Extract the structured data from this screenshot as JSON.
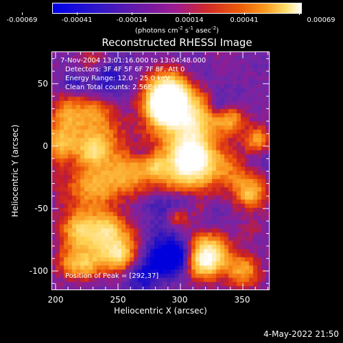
{
  "colorbar": {
    "tick_labels": [
      "-0.00069",
      "-0.00041",
      "-0.00014",
      "0.00014",
      "0.00041",
      "0.00069"
    ],
    "units_main": "(photons cm",
    "units_exp1": "-2",
    "units_mid1": " s",
    "units_exp2": "-1",
    "units_mid2": " asec",
    "units_exp3": "-2",
    "units_end": ")",
    "colors": [
      "#0000e0",
      "#3a10c0",
      "#6a1aa8",
      "#a0229a",
      "#d02a40",
      "#e84a10",
      "#f89020",
      "#ffd060",
      "#ffffff"
    ]
  },
  "title": "Reconstructed RHESSI Image",
  "info": {
    "time_range": "7-Nov-2004 13:01:16.000 to 13:04:48.000",
    "detectors": "Detectors: 3F 4F 5F 6F 7F 8F, Att 0",
    "energy_range": "Energy Range: 12.0 - 25.0 keV",
    "method": "Clean     Total counts: 2.56E+03",
    "peak": "Position of Peak = [292,37]"
  },
  "axes": {
    "xlabel": "Heliocentric X (arcsec)",
    "ylabel": "Heliocentric Y (arcsec)",
    "xticks": [
      "200",
      "250",
      "300",
      "350"
    ],
    "yticks": [
      "50",
      "0",
      "-50",
      "-100"
    ]
  },
  "footer": "4-May-2022 21:50"
}
